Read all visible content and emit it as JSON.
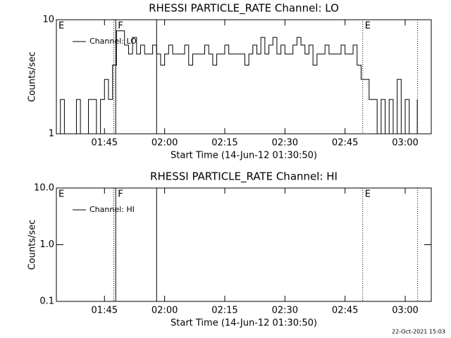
{
  "chart_data": [
    {
      "type": "line",
      "title": "RHESSI PARTICLE_RATE Channel: LO",
      "x_label": "Start Time (14-Jun-12 01:30:50)",
      "y_label": "Counts/sec",
      "xlim": [
        93.0,
        186.5
      ],
      "xticks": [
        {
          "value": 105,
          "label": "01:45"
        },
        {
          "value": 120,
          "label": "02:00"
        },
        {
          "value": 135,
          "label": "02:15"
        },
        {
          "value": 150,
          "label": "02:30"
        },
        {
          "value": 165,
          "label": "02:45"
        },
        {
          "value": 180,
          "label": "03:00"
        }
      ],
      "ylim": [
        1,
        10
      ],
      "yticks": [
        1,
        10
      ],
      "log_y": true,
      "legend": "upper left",
      "x": [
        93,
        94,
        95,
        96,
        97,
        98,
        99,
        100,
        101,
        102,
        103,
        104,
        105,
        106,
        107,
        108,
        109,
        110,
        111,
        112,
        113,
        114,
        115,
        116,
        117,
        118,
        119,
        120,
        121,
        122,
        123,
        124,
        125,
        126,
        127,
        128,
        129,
        130,
        131,
        132,
        133,
        134,
        135,
        136,
        137,
        138,
        139,
        140,
        141,
        142,
        143,
        144,
        145,
        146,
        147,
        148,
        149,
        150,
        151,
        152,
        153,
        154,
        155,
        156,
        157,
        158,
        159,
        160,
        161,
        162,
        163,
        164,
        165,
        166,
        167,
        168,
        169,
        170,
        171,
        172,
        173,
        174,
        175,
        176,
        177,
        178,
        179,
        180,
        181,
        182,
        183
      ],
      "series": [
        {
          "name": "Channel: LO",
          "color": "#000000",
          "values": [
            1,
            2,
            1,
            1,
            1,
            2,
            1,
            1,
            2,
            2,
            1,
            2,
            3,
            2,
            4,
            8,
            8,
            6,
            5,
            7,
            5,
            6,
            5,
            5,
            6,
            5,
            4,
            5,
            6,
            5,
            5,
            5,
            6,
            4,
            5,
            5,
            5,
            6,
            5,
            4,
            5,
            5,
            6,
            5,
            5,
            5,
            5,
            4,
            5,
            6,
            5,
            7,
            5,
            6,
            7,
            5,
            6,
            5,
            5,
            6,
            7,
            6,
            5,
            6,
            4,
            5,
            5,
            6,
            5,
            5,
            5,
            6,
            5,
            5,
            6,
            4,
            3,
            3,
            2,
            2,
            1,
            2,
            1,
            2,
            1,
            3,
            1,
            2,
            1,
            1,
            2
          ]
        }
      ],
      "annotations": [
        {
          "x": 93.0,
          "label": "E",
          "style": "solid"
        },
        {
          "x": 107.3,
          "style": "dotted"
        },
        {
          "x": 107.8,
          "label": "F",
          "style": "solid"
        },
        {
          "x": 118.0,
          "style": "solid"
        },
        {
          "x": 169.4,
          "label": "E",
          "style": "dotted"
        },
        {
          "x": 183.1,
          "style": "dotted"
        }
      ]
    },
    {
      "type": "line",
      "title": "RHESSI PARTICLE_RATE Channel: HI",
      "x_label": "Start Time (14-Jun-12 01:30:50)",
      "y_label": "Counts/sec",
      "xlim": [
        93.0,
        186.5
      ],
      "xticks": [
        {
          "value": 105,
          "label": "01:45"
        },
        {
          "value": 120,
          "label": "02:00"
        },
        {
          "value": 135,
          "label": "02:15"
        },
        {
          "value": 150,
          "label": "02:30"
        },
        {
          "value": 165,
          "label": "02:45"
        },
        {
          "value": 180,
          "label": "03:00"
        }
      ],
      "ylim": [
        0.1,
        10
      ],
      "yticks": [
        0.1,
        {
          "value": 1,
          "label": "1.0"
        },
        {
          "value": 10,
          "label": "10.0"
        }
      ],
      "log_y": true,
      "legend": "upper left",
      "x": [],
      "series": [
        {
          "name": "Channel: HI",
          "color": "#000000",
          "values": []
        }
      ],
      "annotations": [
        {
          "x": 93.0,
          "label": "E",
          "style": "solid"
        },
        {
          "x": 107.3,
          "style": "dotted"
        },
        {
          "x": 107.8,
          "label": "F",
          "style": "solid"
        },
        {
          "x": 118.0,
          "style": "solid"
        },
        {
          "x": 169.4,
          "label": "E",
          "style": "dotted"
        },
        {
          "x": 183.1,
          "style": "dotted"
        }
      ]
    }
  ],
  "footer": "22-Oct-2021 15:03"
}
